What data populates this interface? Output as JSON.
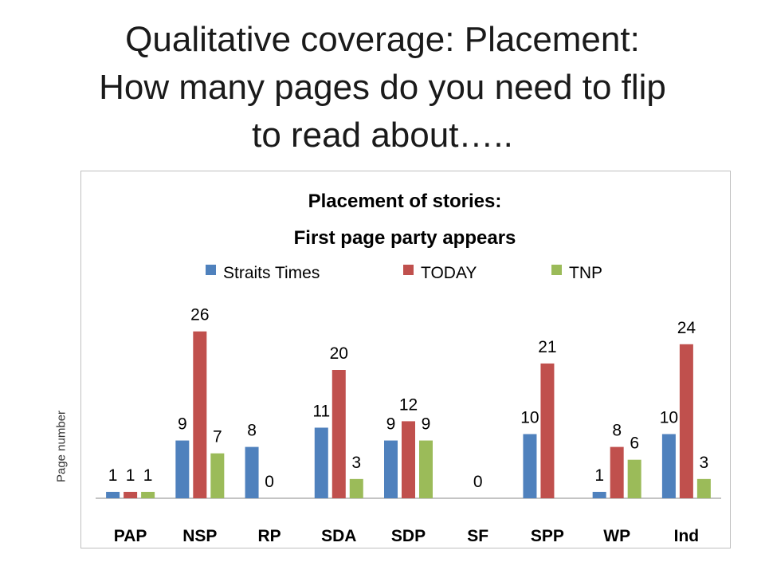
{
  "slide": {
    "title_lines": [
      "Qualitative coverage: Placement:",
      "How many pages do you need to flip",
      "to read about….."
    ]
  },
  "chart_data": {
    "type": "bar",
    "title_lines": [
      "Placement of stories:",
      "First page party appears"
    ],
    "ylabel": "Page number",
    "xlabel": "",
    "categories": [
      "PAP",
      "NSP",
      "RP",
      "SDA",
      "SDP",
      "SF",
      "SPP",
      "WP",
      "Ind"
    ],
    "series": [
      {
        "name": "Straits Times",
        "color": "#4f81bd",
        "values": [
          1,
          9,
          8,
          11,
          9,
          null,
          10,
          1,
          10
        ]
      },
      {
        "name": "TODAY",
        "color": "#c0504d",
        "values": [
          1,
          26,
          0,
          20,
          12,
          0,
          21,
          8,
          24
        ]
      },
      {
        "name": "TNP",
        "color": "#9bbb59",
        "values": [
          1,
          7,
          null,
          3,
          9,
          null,
          null,
          6,
          3
        ]
      }
    ],
    "ylim": [
      0,
      30
    ],
    "grid": false,
    "legend": "top"
  }
}
